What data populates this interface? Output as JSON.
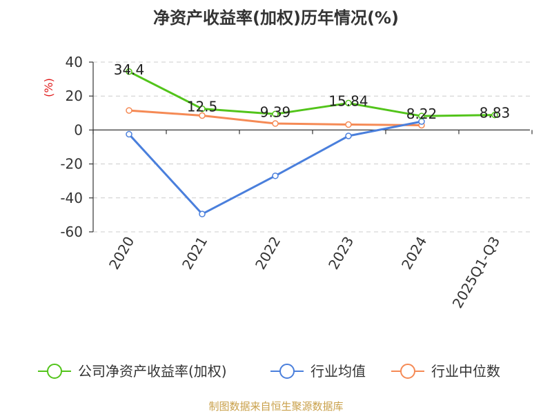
{
  "chart_data": {
    "type": "line",
    "title": "净资产收益率(加权)历年情况(%)",
    "ylabel": "(%)",
    "xlabel": "",
    "categories": [
      "2020",
      "2021",
      "2022",
      "2023",
      "2024",
      "2025Q1-Q3"
    ],
    "ylim": [
      -60,
      40
    ],
    "yticks": [
      40,
      20,
      0,
      -20,
      -40,
      -60
    ],
    "grid": true,
    "legend_position": "bottom",
    "series": [
      {
        "name": "公司净资产收益率(加权)",
        "color": "#52c41a",
        "values": [
          34.4,
          12.5,
          9.39,
          15.84,
          8.22,
          8.83
        ],
        "labels": [
          "34.4",
          "12.5",
          "9.39",
          "15.84",
          "8.22",
          "8.83"
        ]
      },
      {
        "name": "行业均值",
        "color": "#4a7fdc",
        "values": [
          -2.5,
          -49.5,
          -27.0,
          -3.5,
          5.0,
          null
        ]
      },
      {
        "name": "行业中位数",
        "color": "#f58a55",
        "values": [
          11.5,
          8.5,
          3.8,
          3.2,
          2.8,
          null
        ]
      }
    ],
    "source": "制图数据来自恒生聚源数据库"
  }
}
